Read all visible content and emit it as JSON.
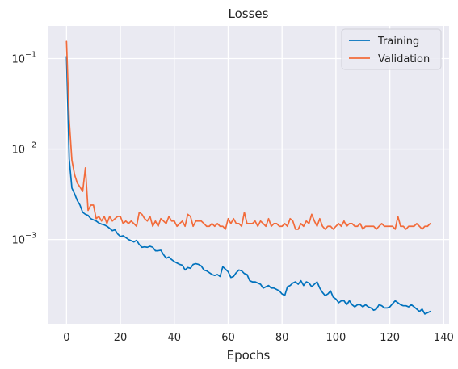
{
  "chart_data": {
    "type": "line",
    "title": "Losses",
    "xlabel": "Epochs",
    "ylabel": "",
    "yscale": "log",
    "xlim": [
      -7,
      142
    ],
    "ylim": [
      0.000117,
      0.23
    ],
    "x_ticks": [
      0,
      20,
      40,
      60,
      80,
      100,
      120,
      140
    ],
    "x_tick_labels": [
      "0",
      "20",
      "40",
      "60",
      "80",
      "100",
      "120",
      "140"
    ],
    "y_ticks": [
      0.001,
      0.01,
      0.1
    ],
    "y_tick_labels": [
      {
        "base": "10",
        "exp": "−3"
      },
      {
        "base": "10",
        "exp": "−2"
      },
      {
        "base": "10",
        "exp": "−1"
      }
    ],
    "grid": true,
    "background": "#eaeaf2",
    "legend_position": "upper-right",
    "series": [
      {
        "name": "Training",
        "color": "#0072bd",
        "points": [
          [
            0,
            0.105
          ],
          [
            1,
            0.0078
          ],
          [
            2,
            0.0037
          ],
          [
            3,
            0.0032
          ],
          [
            4,
            0.0027
          ],
          [
            5,
            0.0024
          ],
          [
            6,
            0.002
          ],
          [
            7,
            0.0019
          ],
          [
            8,
            0.00185
          ],
          [
            9,
            0.0017
          ],
          [
            10,
            0.00165
          ],
          [
            11,
            0.0016
          ],
          [
            12,
            0.00152
          ],
          [
            13,
            0.00148
          ],
          [
            14,
            0.00145
          ],
          [
            15,
            0.0014
          ],
          [
            16,
            0.00133
          ],
          [
            17,
            0.00125
          ],
          [
            18,
            0.00128
          ],
          [
            19,
            0.00115
          ],
          [
            20,
            0.00108
          ],
          [
            21,
            0.0011
          ],
          [
            22,
            0.00105
          ],
          [
            23,
            0.001
          ],
          [
            24,
            0.00097
          ],
          [
            25,
            0.00094
          ],
          [
            26,
            0.00098
          ],
          [
            27,
            0.00088
          ],
          [
            28,
            0.00082
          ],
          [
            29,
            0.00083
          ],
          [
            30,
            0.00082
          ],
          [
            31,
            0.00084
          ],
          [
            32,
            0.00082
          ],
          [
            33,
            0.00075
          ],
          [
            34,
            0.00075
          ],
          [
            35,
            0.00076
          ],
          [
            36,
            0.00068
          ],
          [
            37,
            0.00062
          ],
          [
            38,
            0.00064
          ],
          [
            39,
            0.0006
          ],
          [
            40,
            0.00057
          ],
          [
            41,
            0.00055
          ],
          [
            42,
            0.00053
          ],
          [
            43,
            0.00052
          ],
          [
            44,
            0.00046
          ],
          [
            45,
            0.00049
          ],
          [
            46,
            0.00048
          ],
          [
            47,
            0.00053
          ],
          [
            48,
            0.00054
          ],
          [
            49,
            0.00053
          ],
          [
            50,
            0.00051
          ],
          [
            51,
            0.00046
          ],
          [
            52,
            0.00045
          ],
          [
            53,
            0.00043
          ],
          [
            54,
            0.00041
          ],
          [
            55,
            0.0004
          ],
          [
            56,
            0.00041
          ],
          [
            57,
            0.00039
          ],
          [
            58,
            0.0005
          ],
          [
            59,
            0.00047
          ],
          [
            60,
            0.00044
          ],
          [
            61,
            0.00038
          ],
          [
            62,
            0.00039
          ],
          [
            63,
            0.00043
          ],
          [
            64,
            0.00046
          ],
          [
            65,
            0.00045
          ],
          [
            66,
            0.00042
          ],
          [
            67,
            0.00041
          ],
          [
            68,
            0.00035
          ],
          [
            69,
            0.00034
          ],
          [
            70,
            0.00034
          ],
          [
            71,
            0.00033
          ],
          [
            72,
            0.00032
          ],
          [
            73,
            0.00029
          ],
          [
            74,
            0.0003
          ],
          [
            75,
            0.00031
          ],
          [
            76,
            0.00029
          ],
          [
            77,
            0.00029
          ],
          [
            78,
            0.00028
          ],
          [
            79,
            0.00027
          ],
          [
            80,
            0.00025
          ],
          [
            81,
            0.00024
          ],
          [
            82,
            0.0003
          ],
          [
            83,
            0.00031
          ],
          [
            84,
            0.00033
          ],
          [
            85,
            0.00034
          ],
          [
            86,
            0.00032
          ],
          [
            87,
            0.00035
          ],
          [
            88,
            0.00031
          ],
          [
            89,
            0.00034
          ],
          [
            90,
            0.00033
          ],
          [
            91,
            0.0003
          ],
          [
            92,
            0.00032
          ],
          [
            93,
            0.00034
          ],
          [
            94,
            0.00029
          ],
          [
            95,
            0.00026
          ],
          [
            96,
            0.00024
          ],
          [
            97,
            0.00025
          ],
          [
            98,
            0.00027
          ],
          [
            99,
            0.00023
          ],
          [
            100,
            0.00022
          ],
          [
            101,
            0.0002
          ],
          [
            102,
            0.00021
          ],
          [
            103,
            0.00021
          ],
          [
            104,
            0.00019
          ],
          [
            105,
            0.00021
          ],
          [
            106,
            0.00019
          ],
          [
            107,
            0.00018
          ],
          [
            108,
            0.00019
          ],
          [
            109,
            0.00019
          ],
          [
            110,
            0.00018
          ],
          [
            111,
            0.00019
          ],
          [
            112,
            0.00018
          ],
          [
            113,
            0.000175
          ],
          [
            114,
            0.000165
          ],
          [
            115,
            0.00017
          ],
          [
            116,
            0.00019
          ],
          [
            117,
            0.000185
          ],
          [
            118,
            0.000175
          ],
          [
            119,
            0.000175
          ],
          [
            120,
            0.00018
          ],
          [
            121,
            0.000195
          ],
          [
            122,
            0.00021
          ],
          [
            123,
            0.0002
          ],
          [
            124,
            0.00019
          ],
          [
            125,
            0.000185
          ],
          [
            126,
            0.000185
          ],
          [
            127,
            0.00018
          ],
          [
            128,
            0.00019
          ],
          [
            129,
            0.00018
          ],
          [
            130,
            0.00017
          ],
          [
            131,
            0.00016
          ],
          [
            132,
            0.00017
          ],
          [
            133,
            0.00015
          ],
          [
            134,
            0.000155
          ],
          [
            135,
            0.00016
          ]
        ]
      },
      {
        "name": "Validation",
        "color": "#f26b3a",
        "points": [
          [
            0,
            0.155
          ],
          [
            1,
            0.021
          ],
          [
            2,
            0.0075
          ],
          [
            3,
            0.0052
          ],
          [
            4,
            0.0042
          ],
          [
            5,
            0.0038
          ],
          [
            6,
            0.0034
          ],
          [
            7,
            0.0062
          ],
          [
            8,
            0.0021
          ],
          [
            9,
            0.0024
          ],
          [
            10,
            0.0024
          ],
          [
            11,
            0.0017
          ],
          [
            12,
            0.0018
          ],
          [
            13,
            0.0016
          ],
          [
            14,
            0.0018
          ],
          [
            15,
            0.0015
          ],
          [
            16,
            0.0018
          ],
          [
            17,
            0.0016
          ],
          [
            18,
            0.0017
          ],
          [
            19,
            0.0018
          ],
          [
            20,
            0.0018
          ],
          [
            21,
            0.0015
          ],
          [
            22,
            0.0016
          ],
          [
            23,
            0.0015
          ],
          [
            24,
            0.0016
          ],
          [
            25,
            0.0015
          ],
          [
            26,
            0.0014
          ],
          [
            27,
            0.002
          ],
          [
            28,
            0.0019
          ],
          [
            29,
            0.0017
          ],
          [
            30,
            0.0016
          ],
          [
            31,
            0.0018
          ],
          [
            32,
            0.0014
          ],
          [
            33,
            0.0016
          ],
          [
            34,
            0.0014
          ],
          [
            35,
            0.0017
          ],
          [
            36,
            0.0016
          ],
          [
            37,
            0.0015
          ],
          [
            38,
            0.0018
          ],
          [
            39,
            0.0016
          ],
          [
            40,
            0.0016
          ],
          [
            41,
            0.0014
          ],
          [
            42,
            0.0015
          ],
          [
            43,
            0.0016
          ],
          [
            44,
            0.0014
          ],
          [
            45,
            0.0019
          ],
          [
            46,
            0.0018
          ],
          [
            47,
            0.0014
          ],
          [
            48,
            0.0016
          ],
          [
            49,
            0.0016
          ],
          [
            50,
            0.0016
          ],
          [
            51,
            0.0015
          ],
          [
            52,
            0.0014
          ],
          [
            53,
            0.0014
          ],
          [
            54,
            0.0015
          ],
          [
            55,
            0.0014
          ],
          [
            56,
            0.0015
          ],
          [
            57,
            0.0014
          ],
          [
            58,
            0.0014
          ],
          [
            59,
            0.0013
          ],
          [
            60,
            0.0017
          ],
          [
            61,
            0.0015
          ],
          [
            62,
            0.0017
          ],
          [
            63,
            0.0015
          ],
          [
            64,
            0.0015
          ],
          [
            65,
            0.0014
          ],
          [
            66,
            0.002
          ],
          [
            67,
            0.0015
          ],
          [
            68,
            0.0015
          ],
          [
            69,
            0.0015
          ],
          [
            70,
            0.0016
          ],
          [
            71,
            0.0014
          ],
          [
            72,
            0.0016
          ],
          [
            73,
            0.0015
          ],
          [
            74,
            0.0014
          ],
          [
            75,
            0.0017
          ],
          [
            76,
            0.0014
          ],
          [
            77,
            0.0015
          ],
          [
            78,
            0.0015
          ],
          [
            79,
            0.0014
          ],
          [
            80,
            0.0014
          ],
          [
            81,
            0.0015
          ],
          [
            82,
            0.0014
          ],
          [
            83,
            0.0017
          ],
          [
            84,
            0.0016
          ],
          [
            85,
            0.0013
          ],
          [
            86,
            0.0013
          ],
          [
            87,
            0.0015
          ],
          [
            88,
            0.0014
          ],
          [
            89,
            0.0016
          ],
          [
            90,
            0.0015
          ],
          [
            91,
            0.0019
          ],
          [
            92,
            0.0016
          ],
          [
            93,
            0.0014
          ],
          [
            94,
            0.0017
          ],
          [
            95,
            0.0014
          ],
          [
            96,
            0.0013
          ],
          [
            97,
            0.0014
          ],
          [
            98,
            0.0014
          ],
          [
            99,
            0.0013
          ],
          [
            100,
            0.0014
          ],
          [
            101,
            0.0015
          ],
          [
            102,
            0.0014
          ],
          [
            103,
            0.0016
          ],
          [
            104,
            0.0014
          ],
          [
            105,
            0.0015
          ],
          [
            106,
            0.0015
          ],
          [
            107,
            0.0014
          ],
          [
            108,
            0.0014
          ],
          [
            109,
            0.0015
          ],
          [
            110,
            0.0013
          ],
          [
            111,
            0.0014
          ],
          [
            112,
            0.0014
          ],
          [
            113,
            0.0014
          ],
          [
            114,
            0.0014
          ],
          [
            115,
            0.0013
          ],
          [
            116,
            0.0014
          ],
          [
            117,
            0.0015
          ],
          [
            118,
            0.0014
          ],
          [
            119,
            0.0014
          ],
          [
            120,
            0.0014
          ],
          [
            121,
            0.0014
          ],
          [
            122,
            0.0013
          ],
          [
            123,
            0.0018
          ],
          [
            124,
            0.0014
          ],
          [
            125,
            0.0014
          ],
          [
            126,
            0.0013
          ],
          [
            127,
            0.0014
          ],
          [
            128,
            0.0014
          ],
          [
            129,
            0.0014
          ],
          [
            130,
            0.0015
          ],
          [
            131,
            0.0014
          ],
          [
            132,
            0.0013
          ],
          [
            133,
            0.0014
          ],
          [
            134,
            0.0014
          ],
          [
            135,
            0.0015
          ]
        ]
      }
    ]
  }
}
